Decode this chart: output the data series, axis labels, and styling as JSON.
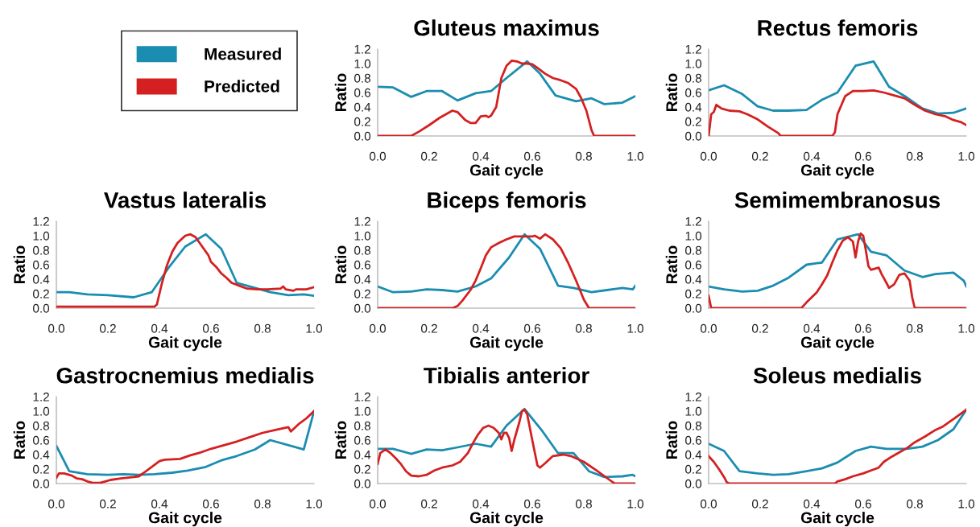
{
  "chart_data": [
    {
      "type": "line",
      "title": "Gluteus maximus",
      "xlabel": "Gait cycle",
      "ylabel": "Ratio",
      "legend": "left",
      "xlim": [
        0,
        1
      ],
      "ylim": [
        0,
        1.2
      ],
      "xticks": [
        {
          "value": 0,
          "label": "0.0"
        },
        {
          "value": 0.2,
          "label": "0.2"
        },
        {
          "value": 0.4,
          "label": "0.4"
        },
        {
          "value": 0.6,
          "label": "0.6"
        },
        {
          "value": 0.8,
          "label": "0.8"
        },
        {
          "value": 1,
          "label": "1.0"
        }
      ],
      "yticks": [
        {
          "value": 0,
          "label": "0.0"
        },
        {
          "value": 0.2,
          "label": "0.2"
        },
        {
          "value": 0.4,
          "label": "0.4"
        },
        {
          "value": 0.6,
          "label": "0.6"
        },
        {
          "value": 0.8,
          "label": "0.8"
        },
        {
          "value": 1,
          "label": "1.0"
        },
        {
          "value": 1.2,
          "label": "1.2"
        }
      ],
      "series": [
        {
          "name": "Measured",
          "color": "#1a8db0",
          "x": [
            0,
            0.06,
            0.13,
            0.19,
            0.25,
            0.31,
            0.38,
            0.44,
            0.5,
            0.58,
            0.63,
            0.69,
            0.77,
            0.83,
            0.88,
            0.95,
            1.0
          ],
          "values": [
            0.68,
            0.67,
            0.54,
            0.62,
            0.62,
            0.49,
            0.59,
            0.62,
            0.8,
            1.03,
            0.86,
            0.56,
            0.48,
            0.52,
            0.44,
            0.46,
            0.55
          ]
        },
        {
          "name": "Predicted",
          "color": "#d42020",
          "x": [
            0,
            0.13,
            0.16,
            0.2,
            0.24,
            0.29,
            0.31,
            0.34,
            0.36,
            0.38,
            0.4,
            0.42,
            0.43,
            0.44,
            0.46,
            0.48,
            0.5,
            0.52,
            0.54,
            0.56,
            0.58,
            0.6,
            0.62,
            0.65,
            0.68,
            0.71,
            0.74,
            0.77,
            0.79,
            0.81,
            0.83,
            0.84,
            1.0
          ],
          "values": [
            0,
            0,
            0.06,
            0.15,
            0.25,
            0.35,
            0.33,
            0.22,
            0.18,
            0.18,
            0.27,
            0.28,
            0.26,
            0.28,
            0.4,
            0.8,
            0.97,
            1.04,
            1.03,
            1.0,
            1.0,
            0.99,
            0.94,
            0.86,
            0.8,
            0.77,
            0.73,
            0.65,
            0.52,
            0.35,
            0.08,
            0,
            0
          ]
        }
      ]
    },
    {
      "type": "line",
      "title": "Rectus femoris",
      "xlabel": "Gait cycle",
      "ylabel": "Ratio",
      "xlim": [
        0,
        1
      ],
      "ylim": [
        0,
        1.2
      ],
      "xticks": [
        {
          "value": 0,
          "label": "0.0"
        },
        {
          "value": 0.2,
          "label": "0.2"
        },
        {
          "value": 0.4,
          "label": "0.4"
        },
        {
          "value": 0.6,
          "label": "0.6"
        },
        {
          "value": 0.8,
          "label": "0.8"
        },
        {
          "value": 1,
          "label": "1.0"
        }
      ],
      "yticks": [
        {
          "value": 0,
          "label": "0.0"
        },
        {
          "value": 0.2,
          "label": "0.2"
        },
        {
          "value": 0.4,
          "label": "0.4"
        },
        {
          "value": 0.6,
          "label": "0.6"
        },
        {
          "value": 0.8,
          "label": "0.8"
        },
        {
          "value": 1,
          "label": "1.0"
        },
        {
          "value": 1.2,
          "label": "1.2"
        }
      ],
      "series": [
        {
          "color": "#1a8db0",
          "x": [
            0,
            0.06,
            0.13,
            0.19,
            0.25,
            0.31,
            0.38,
            0.44,
            0.5,
            0.57,
            0.64,
            0.7,
            0.77,
            0.83,
            0.89,
            0.95,
            1.0
          ],
          "values": [
            0.63,
            0.7,
            0.58,
            0.41,
            0.35,
            0.35,
            0.36,
            0.5,
            0.6,
            0.97,
            1.03,
            0.68,
            0.53,
            0.38,
            0.31,
            0.32,
            0.38
          ]
        },
        {
          "color": "#d42020",
          "x": [
            0,
            0.01,
            0.02,
            0.03,
            0.05,
            0.08,
            0.12,
            0.15,
            0.19,
            0.23,
            0.27,
            0.28,
            0.48,
            0.49,
            0.5,
            0.53,
            0.56,
            0.6,
            0.64,
            0.68,
            0.72,
            0.76,
            0.8,
            0.84,
            0.88,
            0.92,
            0.95,
            0.98,
            1.0
          ],
          "values": [
            0,
            0.3,
            0.33,
            0.43,
            0.38,
            0.35,
            0.34,
            0.3,
            0.23,
            0.13,
            0.04,
            0,
            0,
            0.05,
            0.3,
            0.55,
            0.62,
            0.62,
            0.63,
            0.6,
            0.56,
            0.52,
            0.43,
            0.35,
            0.3,
            0.27,
            0.22,
            0.19,
            0.15
          ]
        }
      ]
    },
    {
      "type": "line",
      "title": "Vastus lateralis",
      "xlabel": "Gait cycle",
      "ylabel": "Ratio",
      "xlim": [
        0,
        1
      ],
      "ylim": [
        0,
        1.2
      ],
      "xticks": [
        {
          "value": 0,
          "label": "0.0"
        },
        {
          "value": 0.2,
          "label": "0.2"
        },
        {
          "value": 0.4,
          "label": "0.4"
        },
        {
          "value": 0.6,
          "label": "0.6"
        },
        {
          "value": 0.8,
          "label": "0.8"
        },
        {
          "value": 1,
          "label": "1.0"
        }
      ],
      "yticks": [
        {
          "value": 0,
          "label": "0.0"
        },
        {
          "value": 0.2,
          "label": "0.2"
        },
        {
          "value": 0.4,
          "label": "0.4"
        },
        {
          "value": 0.6,
          "label": "0.6"
        },
        {
          "value": 0.8,
          "label": "0.8"
        },
        {
          "value": 1,
          "label": "1.0"
        },
        {
          "value": 1.2,
          "label": "1.2"
        }
      ],
      "series": [
        {
          "color": "#1a8db0",
          "x": [
            0,
            0.05,
            0.12,
            0.2,
            0.3,
            0.37,
            0.44,
            0.5,
            0.58,
            0.64,
            0.7,
            0.76,
            0.83,
            0.9,
            0.96,
            1.0
          ],
          "values": [
            0.22,
            0.22,
            0.19,
            0.18,
            0.15,
            0.22,
            0.58,
            0.85,
            1.02,
            0.82,
            0.35,
            0.29,
            0.22,
            0.18,
            0.19,
            0.17
          ]
        },
        {
          "color": "#d42020",
          "x": [
            0,
            0.38,
            0.39,
            0.41,
            0.43,
            0.45,
            0.47,
            0.5,
            0.52,
            0.54,
            0.56,
            0.59,
            0.6,
            0.62,
            0.64,
            0.66,
            0.68,
            0.71,
            0.74,
            0.78,
            0.82,
            0.87,
            0.88,
            0.89,
            0.92,
            0.93,
            0.97,
            1.0
          ],
          "values": [
            0.02,
            0.02,
            0.05,
            0.35,
            0.6,
            0.78,
            0.9,
            1.0,
            1.02,
            0.98,
            0.88,
            0.73,
            0.64,
            0.57,
            0.48,
            0.42,
            0.35,
            0.31,
            0.27,
            0.26,
            0.26,
            0.27,
            0.3,
            0.26,
            0.24,
            0.26,
            0.26,
            0.29
          ]
        }
      ]
    },
    {
      "type": "line",
      "title": "Biceps femoris",
      "xlabel": "Gait cycle",
      "ylabel": "Ratio",
      "xlim": [
        0,
        1
      ],
      "ylim": [
        0,
        1.2
      ],
      "xticks": [
        {
          "value": 0,
          "label": "0.0"
        },
        {
          "value": 0.2,
          "label": "0.2"
        },
        {
          "value": 0.4,
          "label": "0.4"
        },
        {
          "value": 0.6,
          "label": "0.6"
        },
        {
          "value": 0.8,
          "label": "0.8"
        },
        {
          "value": 1,
          "label": "1.0"
        }
      ],
      "yticks": [
        {
          "value": 0,
          "label": "0.0"
        },
        {
          "value": 0.2,
          "label": "0.2"
        },
        {
          "value": 0.4,
          "label": "0.4"
        },
        {
          "value": 0.6,
          "label": "0.6"
        },
        {
          "value": 0.8,
          "label": "0.8"
        },
        {
          "value": 1,
          "label": "1.0"
        },
        {
          "value": 1.2,
          "label": "1.2"
        }
      ],
      "series": [
        {
          "color": "#1a8db0",
          "x": [
            0,
            0.06,
            0.13,
            0.19,
            0.25,
            0.31,
            0.38,
            0.44,
            0.51,
            0.57,
            0.63,
            0.7,
            0.76,
            0.83,
            0.89,
            0.95,
            0.99,
            1.0
          ],
          "values": [
            0.3,
            0.22,
            0.23,
            0.26,
            0.25,
            0.23,
            0.3,
            0.41,
            0.7,
            1.02,
            0.82,
            0.31,
            0.28,
            0.22,
            0.25,
            0.28,
            0.26,
            0.31
          ]
        },
        {
          "color": "#d42020",
          "x": [
            0,
            0.29,
            0.31,
            0.33,
            0.36,
            0.38,
            0.4,
            0.42,
            0.44,
            0.47,
            0.5,
            0.53,
            0.56,
            0.6,
            0.61,
            0.63,
            0.65,
            0.68,
            0.71,
            0.74,
            0.77,
            0.8,
            0.82,
            1.0
          ],
          "values": [
            0,
            0,
            0.03,
            0.11,
            0.25,
            0.38,
            0.55,
            0.73,
            0.84,
            0.9,
            0.95,
            0.99,
            0.99,
            0.99,
            1.0,
            0.96,
            1.02,
            0.95,
            0.83,
            0.62,
            0.38,
            0.12,
            0,
            0
          ]
        }
      ]
    },
    {
      "type": "line",
      "title": "Semimembranosus",
      "xlabel": "Gait cycle",
      "ylabel": "Ratio",
      "xlim": [
        0,
        1
      ],
      "ylim": [
        0,
        1.2
      ],
      "xticks": [
        {
          "value": 0,
          "label": "0.0"
        },
        {
          "value": 0.2,
          "label": "0.2"
        },
        {
          "value": 0.4,
          "label": "0.4"
        },
        {
          "value": 0.6,
          "label": "0.6"
        },
        {
          "value": 0.8,
          "label": "0.8"
        },
        {
          "value": 1,
          "label": "1.0"
        }
      ],
      "yticks": [
        {
          "value": 0,
          "label": "0.0"
        },
        {
          "value": 0.2,
          "label": "0.2"
        },
        {
          "value": 0.4,
          "label": "0.4"
        },
        {
          "value": 0.6,
          "label": "0.6"
        },
        {
          "value": 0.8,
          "label": "0.8"
        },
        {
          "value": 1,
          "label": "1.0"
        },
        {
          "value": 1.2,
          "label": "1.2"
        }
      ],
      "series": [
        {
          "color": "#1a8db0",
          "x": [
            0,
            0.06,
            0.13,
            0.19,
            0.25,
            0.31,
            0.38,
            0.44,
            0.5,
            0.58,
            0.63,
            0.69,
            0.76,
            0.83,
            0.88,
            0.95,
            0.99,
            1.0
          ],
          "values": [
            0.3,
            0.26,
            0.23,
            0.24,
            0.31,
            0.42,
            0.6,
            0.63,
            0.95,
            1.02,
            0.78,
            0.73,
            0.52,
            0.43,
            0.47,
            0.49,
            0.38,
            0.3
          ]
        },
        {
          "color": "#d42020",
          "x": [
            0,
            0.01,
            0.36,
            0.38,
            0.4,
            0.42,
            0.44,
            0.46,
            0.48,
            0.5,
            0.52,
            0.54,
            0.56,
            0.57,
            0.58,
            0.59,
            0.6,
            0.61,
            0.62,
            0.63,
            0.66,
            0.67,
            0.69,
            0.7,
            0.72,
            0.74,
            0.76,
            0.78,
            0.79,
            0.8,
            1.0
          ],
          "values": [
            0.17,
            0,
            0,
            0.08,
            0.15,
            0.22,
            0.33,
            0.45,
            0.63,
            0.8,
            0.93,
            0.98,
            0.92,
            0.7,
            0.92,
            1.03,
            1.0,
            0.8,
            0.58,
            0.53,
            0.56,
            0.48,
            0.35,
            0.28,
            0.33,
            0.46,
            0.48,
            0.38,
            0.15,
            0,
            0
          ]
        }
      ]
    },
    {
      "type": "line",
      "title": "Gastrocnemius medialis",
      "xlabel": "Gait cycle",
      "ylabel": "Ratio",
      "xlim": [
        0,
        1
      ],
      "ylim": [
        0,
        1.2
      ],
      "xticks": [
        {
          "value": 0,
          "label": "0.0"
        },
        {
          "value": 0.2,
          "label": "0.2"
        },
        {
          "value": 0.4,
          "label": "0.4"
        },
        {
          "value": 0.6,
          "label": "0.6"
        },
        {
          "value": 0.8,
          "label": "0.8"
        },
        {
          "value": 1,
          "label": "1.0"
        }
      ],
      "yticks": [
        {
          "value": 0,
          "label": "0.0"
        },
        {
          "value": 0.2,
          "label": "0.2"
        },
        {
          "value": 0.4,
          "label": "0.4"
        },
        {
          "value": 0.6,
          "label": "0.6"
        },
        {
          "value": 0.8,
          "label": "0.8"
        },
        {
          "value": 1,
          "label": "1.0"
        },
        {
          "value": 1.2,
          "label": "1.2"
        }
      ],
      "series": [
        {
          "color": "#1a8db0",
          "x": [
            0,
            0.05,
            0.12,
            0.2,
            0.26,
            0.32,
            0.38,
            0.45,
            0.51,
            0.58,
            0.64,
            0.7,
            0.77,
            0.83,
            0.96,
            1.0
          ],
          "values": [
            0.52,
            0.17,
            0.13,
            0.12,
            0.13,
            0.12,
            0.13,
            0.15,
            0.18,
            0.23,
            0.32,
            0.38,
            0.47,
            0.6,
            0.47,
            1.0
          ]
        },
        {
          "color": "#d42020",
          "x": [
            0,
            0.01,
            0.03,
            0.06,
            0.08,
            0.1,
            0.12,
            0.14,
            0.17,
            0.19,
            0.21,
            0.25,
            0.3,
            0.32,
            0.34,
            0.37,
            0.4,
            0.42,
            0.48,
            0.52,
            0.56,
            0.6,
            0.65,
            0.7,
            0.75,
            0.8,
            0.85,
            0.9,
            0.91,
            0.94,
            0.97,
            1.0
          ],
          "values": [
            0.08,
            0.14,
            0.14,
            0.11,
            0.07,
            0.06,
            0.03,
            0.01,
            0.01,
            0.03,
            0.05,
            0.07,
            0.09,
            0.1,
            0.15,
            0.23,
            0.31,
            0.33,
            0.34,
            0.39,
            0.43,
            0.48,
            0.53,
            0.58,
            0.64,
            0.7,
            0.74,
            0.78,
            0.72,
            0.82,
            0.9,
            1.0
          ]
        }
      ]
    },
    {
      "type": "line",
      "title": "Tibialis anterior",
      "xlabel": "Gait cycle",
      "ylabel": "Ratio",
      "xlim": [
        0,
        1
      ],
      "ylim": [
        0,
        1.2
      ],
      "xticks": [
        {
          "value": 0,
          "label": "0.0"
        },
        {
          "value": 0.2,
          "label": "0.2"
        },
        {
          "value": 0.4,
          "label": "0.4"
        },
        {
          "value": 0.6,
          "label": "0.6"
        },
        {
          "value": 0.8,
          "label": "0.8"
        },
        {
          "value": 1,
          "label": "1.0"
        }
      ],
      "yticks": [
        {
          "value": 0,
          "label": "0.0"
        },
        {
          "value": 0.2,
          "label": "0.2"
        },
        {
          "value": 0.4,
          "label": "0.4"
        },
        {
          "value": 0.6,
          "label": "0.6"
        },
        {
          "value": 0.8,
          "label": "0.8"
        },
        {
          "value": 1,
          "label": "1.0"
        },
        {
          "value": 1.2,
          "label": "1.2"
        }
      ],
      "series": [
        {
          "color": "#1a8db0",
          "x": [
            0,
            0.06,
            0.13,
            0.19,
            0.25,
            0.31,
            0.38,
            0.44,
            0.5,
            0.57,
            0.64,
            0.7,
            0.76,
            0.82,
            0.88,
            0.95,
            0.99,
            1.0
          ],
          "values": [
            0.48,
            0.48,
            0.41,
            0.47,
            0.46,
            0.5,
            0.55,
            0.51,
            0.8,
            1.03,
            0.72,
            0.42,
            0.42,
            0.17,
            0.09,
            0.1,
            0.12,
            0.1
          ]
        },
        {
          "color": "#d42020",
          "x": [
            0,
            0.01,
            0.03,
            0.05,
            0.07,
            0.09,
            0.11,
            0.13,
            0.16,
            0.19,
            0.22,
            0.25,
            0.29,
            0.32,
            0.35,
            0.37,
            0.39,
            0.41,
            0.43,
            0.45,
            0.47,
            0.48,
            0.49,
            0.5,
            0.51,
            0.52,
            0.53,
            0.55,
            0.56,
            0.57,
            0.58,
            0.6,
            0.62,
            0.63,
            0.65,
            0.68,
            0.72,
            0.75,
            0.8,
            0.85,
            0.9,
            0.92,
            1.0
          ],
          "values": [
            0.27,
            0.42,
            0.47,
            0.42,
            0.35,
            0.27,
            0.17,
            0.11,
            0.1,
            0.12,
            0.18,
            0.22,
            0.25,
            0.3,
            0.42,
            0.56,
            0.68,
            0.77,
            0.8,
            0.77,
            0.7,
            0.61,
            0.7,
            0.7,
            0.63,
            0.45,
            0.6,
            0.85,
            1.0,
            1.02,
            0.96,
            0.6,
            0.25,
            0.22,
            0.28,
            0.38,
            0.4,
            0.38,
            0.3,
            0.18,
            0.05,
            0,
            0
          ]
        }
      ]
    },
    {
      "type": "line",
      "title": "Soleus medialis",
      "xlabel": "Gait cycle",
      "ylabel": "Ratio",
      "xlim": [
        0,
        1
      ],
      "ylim": [
        0,
        1.2
      ],
      "xticks": [
        {
          "value": 0,
          "label": "0.0"
        },
        {
          "value": 0.2,
          "label": "0.2"
        },
        {
          "value": 0.4,
          "label": "0.4"
        },
        {
          "value": 0.6,
          "label": "0.6"
        },
        {
          "value": 0.8,
          "label": "0.8"
        },
        {
          "value": 1,
          "label": "1.0"
        }
      ],
      "yticks": [
        {
          "value": 0,
          "label": "0.0"
        },
        {
          "value": 0.2,
          "label": "0.2"
        },
        {
          "value": 0.4,
          "label": "0.4"
        },
        {
          "value": 0.6,
          "label": "0.6"
        },
        {
          "value": 0.8,
          "label": "0.8"
        },
        {
          "value": 1,
          "label": "1.0"
        },
        {
          "value": 1.2,
          "label": "1.2"
        }
      ],
      "series": [
        {
          "color": "#1a8db0",
          "x": [
            0,
            0.06,
            0.12,
            0.19,
            0.25,
            0.31,
            0.38,
            0.44,
            0.5,
            0.57,
            0.63,
            0.69,
            0.77,
            0.83,
            0.89,
            0.95,
            1.0
          ],
          "values": [
            0.55,
            0.45,
            0.17,
            0.14,
            0.12,
            0.13,
            0.17,
            0.21,
            0.29,
            0.45,
            0.51,
            0.48,
            0.48,
            0.51,
            0.6,
            0.75,
            1.02
          ]
        },
        {
          "color": "#d42020",
          "x": [
            0,
            0.02,
            0.04,
            0.06,
            0.07,
            0.08,
            0.49,
            0.5,
            0.53,
            0.56,
            0.6,
            0.63,
            0.66,
            0.68,
            0.71,
            0.74,
            0.77,
            0.8,
            0.84,
            0.88,
            0.91,
            0.95,
            1.0
          ],
          "values": [
            0.38,
            0.3,
            0.2,
            0.09,
            0.02,
            0,
            0,
            0.03,
            0.06,
            0.1,
            0.14,
            0.18,
            0.22,
            0.3,
            0.37,
            0.43,
            0.49,
            0.57,
            0.65,
            0.74,
            0.79,
            0.89,
            1.02
          ]
        }
      ]
    }
  ]
}
